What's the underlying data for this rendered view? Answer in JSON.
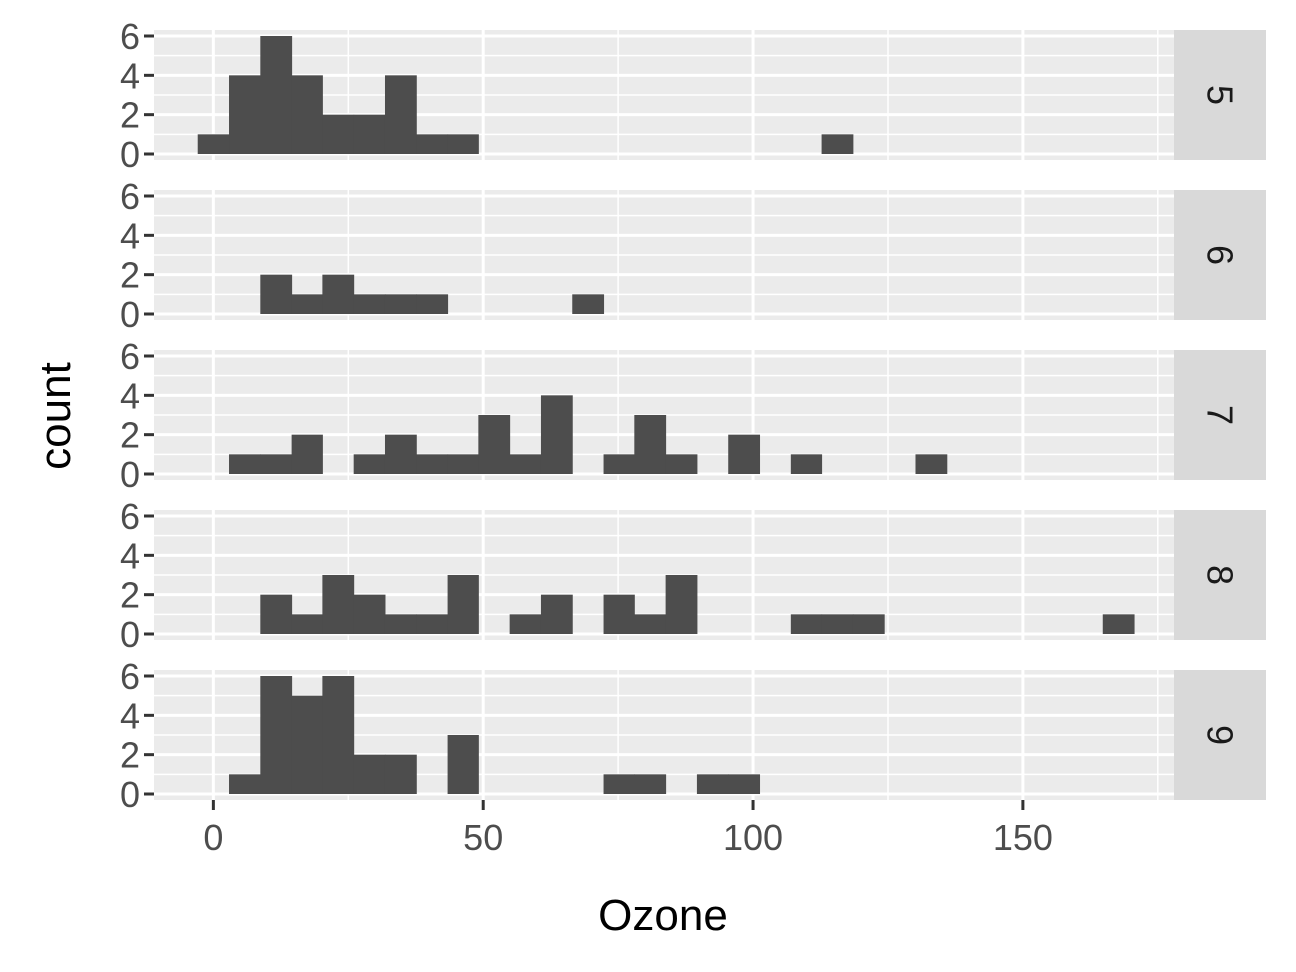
{
  "chart_data": {
    "type": "bar",
    "subtype": "faceted-histogram",
    "xlabel": "Ozone",
    "ylabel": "count",
    "xlim": [
      -11,
      178
    ],
    "ylim": [
      0,
      6
    ],
    "x_ticks": [
      0,
      50,
      100,
      150
    ],
    "y_ticks": [
      0,
      2,
      4,
      6
    ],
    "bin_width": 5.78,
    "bar_color": "#4d4d4d",
    "panel_background": "#ebebeb",
    "strip_background": "#d9d9d9",
    "grid": true,
    "facets": [
      {
        "label": "5",
        "bins": [
          {
            "x0": -2.9,
            "x1": 2.9,
            "count": 1
          },
          {
            "x0": 2.9,
            "x1": 8.7,
            "count": 4
          },
          {
            "x0": 8.7,
            "x1": 14.5,
            "count": 6
          },
          {
            "x0": 14.5,
            "x1": 20.2,
            "count": 4
          },
          {
            "x0": 20.2,
            "x1": 26.0,
            "count": 2
          },
          {
            "x0": 26.0,
            "x1": 31.8,
            "count": 2
          },
          {
            "x0": 31.8,
            "x1": 37.6,
            "count": 4
          },
          {
            "x0": 37.6,
            "x1": 43.4,
            "count": 1
          },
          {
            "x0": 43.4,
            "x1": 49.1,
            "count": 1
          },
          {
            "x0": 112.7,
            "x1": 118.5,
            "count": 1
          }
        ]
      },
      {
        "label": "6",
        "bins": [
          {
            "x0": 8.7,
            "x1": 14.5,
            "count": 2
          },
          {
            "x0": 14.5,
            "x1": 20.2,
            "count": 1
          },
          {
            "x0": 20.2,
            "x1": 26.0,
            "count": 2
          },
          {
            "x0": 26.0,
            "x1": 31.8,
            "count": 1
          },
          {
            "x0": 31.8,
            "x1": 37.6,
            "count": 1
          },
          {
            "x0": 37.6,
            "x1": 43.4,
            "count": 1
          },
          {
            "x0": 66.5,
            "x1": 72.3,
            "count": 1
          }
        ]
      },
      {
        "label": "7",
        "bins": [
          {
            "x0": 2.9,
            "x1": 8.7,
            "count": 1
          },
          {
            "x0": 8.7,
            "x1": 14.5,
            "count": 1
          },
          {
            "x0": 14.5,
            "x1": 20.2,
            "count": 2
          },
          {
            "x0": 26.0,
            "x1": 31.8,
            "count": 1
          },
          {
            "x0": 31.8,
            "x1": 37.6,
            "count": 2
          },
          {
            "x0": 37.6,
            "x1": 43.4,
            "count": 1
          },
          {
            "x0": 43.4,
            "x1": 49.1,
            "count": 1
          },
          {
            "x0": 49.1,
            "x1": 54.9,
            "count": 3
          },
          {
            "x0": 54.9,
            "x1": 60.7,
            "count": 1
          },
          {
            "x0": 60.7,
            "x1": 66.5,
            "count": 4
          },
          {
            "x0": 72.3,
            "x1": 78.0,
            "count": 1
          },
          {
            "x0": 78.0,
            "x1": 83.8,
            "count": 3
          },
          {
            "x0": 83.8,
            "x1": 89.6,
            "count": 1
          },
          {
            "x0": 95.4,
            "x1": 101.2,
            "count": 2
          },
          {
            "x0": 107.0,
            "x1": 112.7,
            "count": 1
          },
          {
            "x0": 130.1,
            "x1": 135.9,
            "count": 1
          }
        ]
      },
      {
        "label": "8",
        "bins": [
          {
            "x0": 8.7,
            "x1": 14.5,
            "count": 2
          },
          {
            "x0": 14.5,
            "x1": 20.2,
            "count": 1
          },
          {
            "x0": 20.2,
            "x1": 26.0,
            "count": 3
          },
          {
            "x0": 26.0,
            "x1": 31.8,
            "count": 2
          },
          {
            "x0": 31.8,
            "x1": 37.6,
            "count": 1
          },
          {
            "x0": 37.6,
            "x1": 43.4,
            "count": 1
          },
          {
            "x0": 43.4,
            "x1": 49.1,
            "count": 3
          },
          {
            "x0": 54.9,
            "x1": 60.7,
            "count": 1
          },
          {
            "x0": 60.7,
            "x1": 66.5,
            "count": 2
          },
          {
            "x0": 72.3,
            "x1": 78.0,
            "count": 2
          },
          {
            "x0": 78.0,
            "x1": 83.8,
            "count": 1
          },
          {
            "x0": 83.8,
            "x1": 89.6,
            "count": 3
          },
          {
            "x0": 107.0,
            "x1": 112.7,
            "count": 1
          },
          {
            "x0": 112.7,
            "x1": 118.5,
            "count": 1
          },
          {
            "x0": 118.5,
            "x1": 124.3,
            "count": 1
          },
          {
            "x0": 164.8,
            "x1": 170.6,
            "count": 1
          }
        ]
      },
      {
        "label": "9",
        "bins": [
          {
            "x0": 2.9,
            "x1": 8.7,
            "count": 1
          },
          {
            "x0": 8.7,
            "x1": 14.5,
            "count": 6
          },
          {
            "x0": 14.5,
            "x1": 20.2,
            "count": 5
          },
          {
            "x0": 20.2,
            "x1": 26.0,
            "count": 6
          },
          {
            "x0": 26.0,
            "x1": 31.8,
            "count": 2
          },
          {
            "x0": 31.8,
            "x1": 37.6,
            "count": 2
          },
          {
            "x0": 43.4,
            "x1": 49.1,
            "count": 3
          },
          {
            "x0": 72.3,
            "x1": 78.0,
            "count": 1
          },
          {
            "x0": 78.0,
            "x1": 83.8,
            "count": 1
          },
          {
            "x0": 89.6,
            "x1": 95.4,
            "count": 1
          },
          {
            "x0": 95.4,
            "x1": 101.2,
            "count": 1
          }
        ]
      }
    ]
  }
}
